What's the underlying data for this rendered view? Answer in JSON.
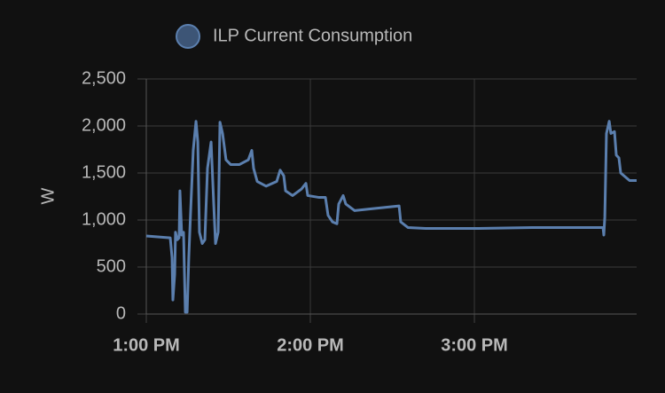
{
  "chart_data": {
    "type": "line",
    "y_label": "W",
    "x": [
      13.0,
      13.146,
      13.157,
      13.162,
      13.173,
      13.178,
      13.189,
      13.2,
      13.205,
      13.216,
      13.227,
      13.238,
      13.249,
      13.259,
      13.27,
      13.286,
      13.303,
      13.314,
      13.324,
      13.341,
      13.357,
      13.373,
      13.395,
      13.411,
      13.422,
      13.438,
      13.449,
      13.465,
      13.486,
      13.514,
      13.568,
      13.622,
      13.643,
      13.654,
      13.676,
      13.73,
      13.795,
      13.816,
      13.838,
      13.849,
      13.892,
      13.946,
      13.973,
      13.984,
      14.054,
      14.092,
      14.108,
      14.135,
      14.162,
      14.173,
      14.2,
      14.216,
      14.27,
      14.378,
      14.541,
      14.551,
      14.595,
      14.703,
      15.027,
      15.351,
      15.784,
      15.789,
      15.795,
      15.805,
      15.822,
      15.832,
      15.854,
      15.865,
      15.881,
      15.892,
      15.946,
      15.989
    ],
    "series": [
      {
        "name": "ILP Current Consumption",
        "color": "#5b7fae",
        "values": [
          830,
          810,
          600,
          150,
          420,
          870,
          790,
          810,
          1310,
          840,
          870,
          20,
          20,
          600,
          1080,
          1740,
          2050,
          1830,
          870,
          750,
          790,
          1550,
          1830,
          1170,
          750,
          870,
          2040,
          1920,
          1640,
          1590,
          1590,
          1640,
          1740,
          1550,
          1410,
          1360,
          1410,
          1530,
          1470,
          1310,
          1260,
          1330,
          1390,
          1260,
          1240,
          1240,
          1050,
          980,
          960,
          1170,
          1260,
          1170,
          1100,
          1120,
          1150,
          980,
          920,
          910,
          910,
          920,
          920,
          840,
          1030,
          1920,
          2050,
          1920,
          1940,
          1690,
          1660,
          1500,
          1420,
          1420
        ]
      }
    ],
    "xlim": [
      13,
      15.989
    ],
    "xticks": [
      {
        "value": 13,
        "label": "1:00 PM"
      },
      {
        "value": 14,
        "label": "2:00 PM"
      },
      {
        "value": 15,
        "label": "3:00 PM"
      }
    ],
    "ylim": [
      0,
      2500
    ],
    "yticks": [
      0,
      {
        "value": 500,
        "label": "500"
      },
      {
        "value": 1000,
        "label": "1,000"
      },
      {
        "value": 1500,
        "label": "1,500"
      },
      {
        "value": 2000,
        "label": "2,000"
      },
      {
        "value": 2500,
        "label": "2,500"
      }
    ],
    "grid": true
  }
}
